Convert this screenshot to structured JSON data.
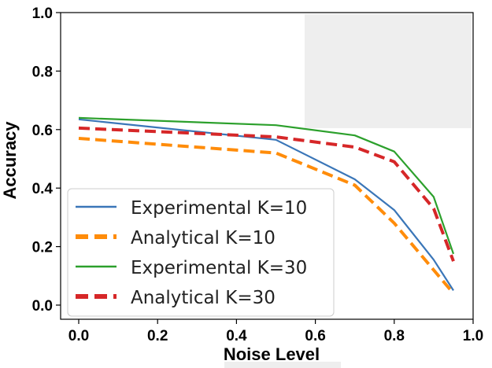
{
  "chart_data": {
    "type": "line",
    "xlabel": "Noise Level",
    "ylabel": "Accuracy",
    "xlim": [
      0.0,
      1.0
    ],
    "ylim": [
      0.0,
      1.0
    ],
    "xticks": [
      "0.0",
      "0.2",
      "0.4",
      "0.6",
      "0.8",
      "1.0"
    ],
    "yticks": [
      "0.0",
      "0.2",
      "0.4",
      "0.6",
      "0.8",
      "1.0"
    ],
    "grid": false,
    "legend_position": "lower-left",
    "series": [
      {
        "name": "Experimental K=10",
        "color": "#3a76b8",
        "style": "solid",
        "x": [
          0.0,
          0.5,
          0.7,
          0.8,
          0.9,
          0.95
        ],
        "y": [
          0.635,
          0.565,
          0.43,
          0.325,
          0.155,
          0.05
        ]
      },
      {
        "name": "Analytical K=10",
        "color": "#ff8c0a",
        "style": "dashed",
        "x": [
          0.0,
          0.5,
          0.7,
          0.8,
          0.9,
          0.95
        ],
        "y": [
          0.57,
          0.52,
          0.41,
          0.28,
          0.12,
          0.04
        ]
      },
      {
        "name": "Experimental K=30",
        "color": "#2ca02c",
        "style": "solid",
        "x": [
          0.0,
          0.5,
          0.7,
          0.8,
          0.9,
          0.95
        ],
        "y": [
          0.64,
          0.615,
          0.58,
          0.525,
          0.37,
          0.175
        ]
      },
      {
        "name": "Analytical K=30",
        "color": "#d62728",
        "style": "dashed",
        "x": [
          0.0,
          0.5,
          0.7,
          0.8,
          0.9,
          0.95
        ],
        "y": [
          0.605,
          0.575,
          0.54,
          0.49,
          0.33,
          0.15
        ]
      }
    ]
  }
}
